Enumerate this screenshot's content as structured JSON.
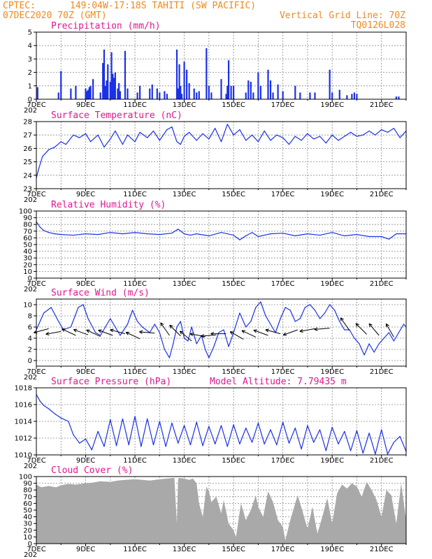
{
  "header": {
    "source": "CPTEC:",
    "location": "149:04W-17:18S  TAHITI (SW PACIFIC)",
    "init_time": "07DEC2020 70Z (GMT)",
    "grid_note": "Vertical Grid Line: 70Z",
    "model_id": "TQ0126L028"
  },
  "colors": {
    "header": "#f08a1c",
    "title": "#e0188f",
    "series": "#1b31e6",
    "cloud": "#a9a9a9",
    "arrow": "#000000"
  },
  "x_axis": {
    "start_day": 7,
    "end_day": 22,
    "tick_days": [
      7,
      9,
      11,
      13,
      15,
      17,
      19,
      21
    ],
    "tick_labels": [
      "7DEC",
      "9DEC",
      "11DEC",
      "13DEC",
      "15DEC",
      "17DEC",
      "19DEC",
      "21DEC"
    ],
    "partial_label": "202"
  },
  "chart_data": [
    {
      "type": "bar",
      "title": "Precipitation (mm/h)",
      "ylim": [
        0,
        5
      ],
      "yticks": [
        0,
        1,
        2,
        3,
        4,
        5
      ],
      "color": "#1b31e6",
      "x": [
        7.05,
        7.9,
        8.0,
        8.4,
        8.6,
        9.0,
        9.05,
        9.1,
        9.15,
        9.2,
        9.3,
        9.6,
        9.7,
        9.75,
        9.8,
        9.85,
        9.9,
        10.0,
        10.05,
        10.1,
        10.15,
        10.2,
        10.3,
        10.35,
        10.4,
        10.6,
        10.7,
        11.1,
        11.2,
        11.6,
        11.7,
        11.9,
        12.0,
        12.2,
        12.3,
        12.7,
        12.75,
        12.8,
        12.85,
        12.9,
        13.0,
        13.1,
        13.2,
        13.4,
        13.5,
        13.6,
        13.9,
        14.0,
        14.1,
        14.5,
        14.7,
        14.75,
        14.8,
        14.9,
        15.0,
        15.5,
        15.6,
        15.7,
        15.8,
        16.0,
        16.1,
        16.4,
        16.5,
        16.6,
        16.8,
        17.0,
        17.5,
        17.7,
        18.1,
        18.3,
        18.9,
        19.0,
        19.3,
        19.6,
        19.8,
        19.9,
        20.0,
        21.6,
        21.7
      ],
      "values": [
        0.9,
        0.5,
        2.1,
        0.8,
        1.0,
        0.8,
        0.6,
        0.7,
        0.9,
        1.0,
        1.5,
        0.5,
        2.7,
        3.7,
        1.0,
        1.4,
        2.6,
        1.3,
        3.5,
        1.9,
        1.6,
        2.0,
        0.8,
        1.2,
        0.6,
        3.6,
        0.8,
        0.5,
        1.0,
        0.8,
        1.1,
        0.8,
        0.5,
        0.6,
        0.4,
        3.7,
        0.8,
        2.6,
        1.0,
        0.4,
        2.8,
        2.2,
        1.2,
        0.8,
        0.5,
        0.6,
        3.8,
        1.0,
        0.5,
        1.5,
        0.4,
        1.0,
        2.9,
        1.0,
        1.0,
        0.5,
        1.4,
        1.3,
        0.5,
        2.0,
        1.0,
        2.2,
        1.4,
        0.5,
        1.1,
        0.6,
        1.0,
        0.5,
        0.5,
        0.5,
        2.2,
        0.5,
        0.7,
        0.3,
        0.4,
        0.5,
        0.4,
        0.2,
        0.2
      ]
    },
    {
      "type": "line",
      "title": "Surface Temperature (nC)",
      "ylim": [
        23,
        28
      ],
      "yticks": [
        23,
        24,
        25,
        26,
        27,
        28
      ],
      "color": "#1b31e6",
      "x": [
        7.0,
        7.1,
        7.25,
        7.5,
        7.75,
        8.0,
        8.2,
        8.5,
        8.75,
        9.0,
        9.2,
        9.5,
        9.75,
        10.0,
        10.2,
        10.5,
        10.7,
        11.0,
        11.2,
        11.5,
        11.75,
        12.0,
        12.3,
        12.5,
        12.7,
        12.85,
        13.0,
        13.2,
        13.5,
        13.75,
        14.0,
        14.25,
        14.5,
        14.75,
        15.0,
        15.25,
        15.5,
        15.75,
        16.0,
        16.25,
        16.5,
        16.75,
        17.0,
        17.25,
        17.5,
        17.75,
        18.0,
        18.25,
        18.5,
        18.75,
        19.0,
        19.25,
        19.5,
        19.75,
        20.0,
        20.25,
        20.5,
        20.75,
        21.0,
        21.25,
        21.5,
        21.75,
        22.0
      ],
      "values": [
        23.8,
        24.5,
        25.4,
        25.9,
        26.1,
        26.5,
        26.3,
        27.0,
        26.8,
        27.1,
        26.5,
        27.0,
        26.1,
        26.7,
        27.3,
        26.3,
        27.0,
        26.5,
        27.2,
        26.8,
        27.3,
        26.6,
        27.4,
        27.6,
        26.5,
        26.3,
        26.9,
        27.2,
        26.6,
        27.1,
        26.7,
        27.5,
        26.5,
        27.8,
        27.0,
        27.4,
        26.6,
        27.0,
        26.5,
        27.3,
        26.6,
        27.0,
        26.8,
        26.3,
        26.9,
        26.6,
        27.1,
        26.7,
        26.9,
        26.4,
        27.0,
        26.6,
        26.9,
        27.2,
        26.9,
        27.0,
        27.3,
        27.0,
        27.4,
        27.2,
        27.5,
        26.8,
        27.3
      ]
    },
    {
      "type": "line",
      "title": "Relative Humidity (%)",
      "ylim": [
        0,
        100
      ],
      "yticks": [
        0,
        10,
        20,
        30,
        40,
        50,
        60,
        70,
        80,
        90,
        100
      ],
      "color": "#1b31e6",
      "x": [
        7.0,
        7.15,
        7.3,
        7.5,
        7.75,
        8.0,
        8.5,
        9.0,
        9.5,
        10.0,
        10.5,
        11.0,
        11.5,
        12.0,
        12.5,
        12.75,
        13.0,
        13.25,
        13.5,
        14.0,
        14.5,
        15.0,
        15.25,
        15.5,
        15.75,
        16.0,
        16.5,
        17.0,
        17.5,
        18.0,
        18.5,
        19.0,
        19.5,
        20.0,
        20.5,
        21.0,
        21.3,
        21.6,
        22.0
      ],
      "values": [
        84,
        76,
        71,
        68,
        66,
        65,
        64,
        66,
        65,
        68,
        66,
        68,
        66,
        65,
        67,
        73,
        66,
        64,
        66,
        63,
        68,
        64,
        57,
        63,
        68,
        62,
        66,
        67,
        63,
        66,
        64,
        68,
        63,
        65,
        62,
        62,
        58,
        66,
        66
      ]
    },
    {
      "type": "line",
      "title": "Surface Wind (m/s)",
      "ylim": [
        -1,
        11
      ],
      "yticks": [
        0,
        2,
        4,
        6,
        8,
        10
      ],
      "color": "#1b31e6",
      "x": [
        7.0,
        7.3,
        7.6,
        7.9,
        8.1,
        8.4,
        8.7,
        8.9,
        9.1,
        9.4,
        9.6,
        9.8,
        10.0,
        10.2,
        10.4,
        10.7,
        10.9,
        11.1,
        11.3,
        11.6,
        11.8,
        12.0,
        12.2,
        12.4,
        12.55,
        12.7,
        12.85,
        13.0,
        13.15,
        13.3,
        13.5,
        13.7,
        13.85,
        14.0,
        14.2,
        14.4,
        14.6,
        14.8,
        15.0,
        15.25,
        15.5,
        15.7,
        15.9,
        16.1,
        16.3,
        16.5,
        16.7,
        16.9,
        17.1,
        17.3,
        17.5,
        17.7,
        17.9,
        18.1,
        18.3,
        18.5,
        18.7,
        18.9,
        19.1,
        19.3,
        19.5,
        19.7,
        19.9,
        20.1,
        20.3,
        20.5,
        20.7,
        20.9,
        21.1,
        21.3,
        21.5,
        21.7,
        21.9,
        22.0
      ],
      "values": [
        5.5,
        8.5,
        9.5,
        7.0,
        5.5,
        6.0,
        9.5,
        10.0,
        7.5,
        5.0,
        4.5,
        6.0,
        7.5,
        6.0,
        4.5,
        6.5,
        9.0,
        7.0,
        6.0,
        5.0,
        6.5,
        5.0,
        2.0,
        0.5,
        3.0,
        6.0,
        7.0,
        4.0,
        3.5,
        6.0,
        3.0,
        4.5,
        2.0,
        0.5,
        2.5,
        5.0,
        5.5,
        2.5,
        5.0,
        8.5,
        6.0,
        7.0,
        9.5,
        10.5,
        8.0,
        6.5,
        5.0,
        7.5,
        9.5,
        9.0,
        7.0,
        7.5,
        9.5,
        10.0,
        9.0,
        7.5,
        8.5,
        10.0,
        9.0,
        7.0,
        5.5,
        5.5,
        4.0,
        3.0,
        1.0,
        3.0,
        1.5,
        3.0,
        4.0,
        5.0,
        3.5,
        5.0,
        6.5,
        6.0
      ]
    },
    {
      "type": "line",
      "title": "Surface Pressure (hPa)",
      "annotation": "Model Altitude: 7.79435 m",
      "ylim": [
        1010,
        1018
      ],
      "yticks": [
        1010,
        1012,
        1014,
        1016,
        1018
      ],
      "color": "#1b31e6",
      "x": [
        7.0,
        7.15,
        7.3,
        7.5,
        7.75,
        8.0,
        8.3,
        8.5,
        8.75,
        9.0,
        9.25,
        9.5,
        9.75,
        10.0,
        10.25,
        10.5,
        10.75,
        11.0,
        11.25,
        11.5,
        11.75,
        12.0,
        12.25,
        12.5,
        12.75,
        13.0,
        13.25,
        13.5,
        13.75,
        14.0,
        14.25,
        14.5,
        14.75,
        15.0,
        15.25,
        15.5,
        15.75,
        16.0,
        16.25,
        16.5,
        16.75,
        17.0,
        17.25,
        17.5,
        17.75,
        18.0,
        18.25,
        18.5,
        18.75,
        19.0,
        19.25,
        19.5,
        19.75,
        20.0,
        20.25,
        20.5,
        20.75,
        21.0,
        21.25,
        21.5,
        21.75,
        22.0
      ],
      "values": [
        1017.2,
        1016.4,
        1015.9,
        1015.5,
        1014.9,
        1014.4,
        1014.0,
        1012.4,
        1011.4,
        1011.9,
        1010.6,
        1012.8,
        1011.0,
        1014.2,
        1011.1,
        1014.3,
        1011.2,
        1014.6,
        1011.0,
        1014.3,
        1011.2,
        1014.0,
        1011.0,
        1013.8,
        1011.4,
        1013.5,
        1011.2,
        1013.9,
        1011.1,
        1013.4,
        1011.3,
        1013.5,
        1011.0,
        1013.6,
        1011.3,
        1013.2,
        1011.5,
        1013.8,
        1011.3,
        1013.0,
        1011.2,
        1013.9,
        1011.4,
        1013.2,
        1010.7,
        1013.5,
        1011.5,
        1013.0,
        1010.5,
        1013.3,
        1011.3,
        1012.8,
        1010.5,
        1012.9,
        1010.2,
        1012.6,
        1010.1,
        1013.0,
        1010.1,
        1011.5,
        1012.2,
        1010.4
      ]
    },
    {
      "type": "area",
      "title": "Cloud Cover (%)",
      "ylim": [
        0,
        100
      ],
      "yticks": [
        0,
        10,
        20,
        30,
        40,
        50,
        60,
        70,
        80,
        90,
        100
      ],
      "color": "#a9a9a9",
      "x": [
        7.0,
        7.2,
        7.5,
        7.8,
        8.0,
        8.3,
        8.6,
        9.0,
        9.3,
        9.6,
        10.0,
        10.3,
        10.6,
        11.0,
        11.3,
        11.6,
        12.0,
        12.3,
        12.6,
        12.7,
        12.75,
        12.8,
        13.0,
        13.2,
        13.35,
        13.5,
        13.6,
        13.75,
        13.9,
        14.0,
        14.1,
        14.3,
        14.5,
        14.6,
        14.8,
        15.0,
        15.1,
        15.3,
        15.5,
        15.7,
        15.9,
        16.0,
        16.2,
        16.4,
        16.6,
        16.8,
        17.0,
        17.1,
        17.3,
        17.5,
        17.6,
        17.8,
        18.0,
        18.2,
        18.4,
        18.6,
        18.8,
        19.0,
        19.2,
        19.4,
        19.6,
        19.8,
        20.0,
        20.2,
        20.4,
        20.6,
        20.8,
        21.0,
        21.2,
        21.4,
        21.6,
        21.8,
        22.0
      ],
      "values": [
        88,
        84,
        86,
        84,
        87,
        89,
        88,
        90,
        91,
        93,
        92,
        94,
        95,
        96,
        95,
        94,
        96,
        97,
        98,
        30,
        96,
        98,
        97,
        95,
        97,
        90,
        60,
        40,
        85,
        78,
        62,
        70,
        45,
        65,
        30,
        20,
        10,
        60,
        35,
        50,
        72,
        55,
        40,
        78,
        62,
        35,
        25,
        5,
        35,
        60,
        72,
        48,
        22,
        55,
        15,
        40,
        68,
        30,
        75,
        88,
        82,
        90,
        85,
        70,
        92,
        80,
        65,
        40,
        80,
        72,
        30,
        90,
        35
      ]
    }
  ],
  "wind_vectors": {
    "note": "",
    "items": [
      {
        "day": 7.5,
        "speed": 5.7,
        "dir_deg": 165
      },
      {
        "day": 8.0,
        "speed": 5.2,
        "dir_deg": 170
      },
      {
        "day": 8.6,
        "speed": 4.5,
        "dir_deg": 205
      },
      {
        "day": 9.1,
        "speed": 4.6,
        "dir_deg": 200
      },
      {
        "day": 9.6,
        "speed": 4.3,
        "dir_deg": 205
      },
      {
        "day": 10.1,
        "speed": 4.5,
        "dir_deg": 200
      },
      {
        "day": 10.6,
        "speed": 4.8,
        "dir_deg": 195
      },
      {
        "day": 11.2,
        "speed": 3.9,
        "dir_deg": 205
      },
      {
        "day": 11.8,
        "speed": 4.9,
        "dir_deg": 185
      },
      {
        "day": 12.4,
        "speed": 4.5,
        "dir_deg": 235
      },
      {
        "day": 12.85,
        "speed": 4.4,
        "dir_deg": 225
      },
      {
        "day": 13.3,
        "speed": 3.5,
        "dir_deg": 220
      },
      {
        "day": 13.85,
        "speed": 4.3,
        "dir_deg": 190
      },
      {
        "day": 14.3,
        "speed": 4.6,
        "dir_deg": 175
      },
      {
        "day": 14.7,
        "speed": 4.8,
        "dir_deg": 180
      },
      {
        "day": 15.4,
        "speed": 3.8,
        "dir_deg": 210
      },
      {
        "day": 15.9,
        "speed": 4.2,
        "dir_deg": 205
      },
      {
        "day": 16.4,
        "speed": 4.5,
        "dir_deg": 200
      },
      {
        "day": 16.9,
        "speed": 4.8,
        "dir_deg": 195
      },
      {
        "day": 17.6,
        "speed": 5.5,
        "dir_deg": 160
      },
      {
        "day": 18.3,
        "speed": 5.7,
        "dir_deg": 170
      },
      {
        "day": 18.9,
        "speed": 5.8,
        "dir_deg": 175
      },
      {
        "day": 19.7,
        "speed": 5.4,
        "dir_deg": 235
      },
      {
        "day": 20.4,
        "speed": 4.7,
        "dir_deg": 225
      },
      {
        "day": 20.9,
        "speed": 4.5,
        "dir_deg": 230
      },
      {
        "day": 21.5,
        "speed": 4.2,
        "dir_deg": 240
      }
    ]
  }
}
